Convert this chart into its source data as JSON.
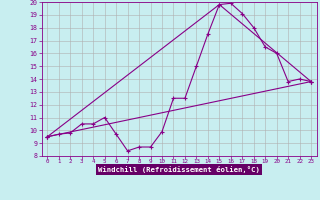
{
  "title": "",
  "xlabel": "Windchill (Refroidissement éolien,°C)",
  "bg_color": "#c8eef0",
  "grid_color": "#b0b0b0",
  "line_color": "#880088",
  "xlabel_bg": "#660066",
  "xlabel_fg": "#ffffff",
  "xlim": [
    -0.5,
    23.5
  ],
  "ylim": [
    8,
    20
  ],
  "xticks": [
    0,
    1,
    2,
    3,
    4,
    5,
    6,
    7,
    8,
    9,
    10,
    11,
    12,
    13,
    14,
    15,
    16,
    17,
    18,
    19,
    20,
    21,
    22,
    23
  ],
  "yticks": [
    8,
    9,
    10,
    11,
    12,
    13,
    14,
    15,
    16,
    17,
    18,
    19,
    20
  ],
  "series1_x": [
    0,
    1,
    2,
    3,
    4,
    5,
    6,
    7,
    8,
    9,
    10,
    11,
    12,
    13,
    14,
    15,
    16,
    17,
    18,
    19,
    20,
    21,
    22,
    23
  ],
  "series1_y": [
    9.5,
    9.7,
    9.8,
    10.5,
    10.5,
    11.0,
    9.7,
    8.4,
    8.7,
    8.7,
    9.9,
    12.5,
    12.5,
    15.0,
    17.5,
    19.8,
    19.9,
    19.1,
    18.0,
    16.5,
    16.0,
    13.8,
    14.0,
    13.8
  ],
  "series2_x": [
    0,
    23
  ],
  "series2_y": [
    9.5,
    13.8
  ],
  "series3_x": [
    0,
    15,
    23
  ],
  "series3_y": [
    9.5,
    19.8,
    13.8
  ],
  "linewidth": 0.8,
  "markersize": 3.0
}
